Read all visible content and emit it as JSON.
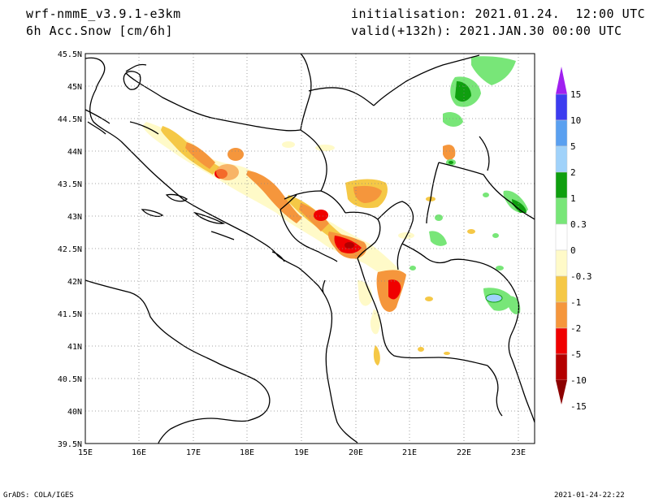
{
  "header": {
    "model": "wrf-nmmE_v3.9.1-e3km",
    "variable": "6h Acc.Snow [cm/6h]",
    "initialisation": "initialisation: 2021.01.24.  12:00 UTC",
    "valid": "valid(+132h): 2021.JAN.30 00:00 UTC"
  },
  "map": {
    "lat_labels": [
      "45.5N",
      "45N",
      "44.5N",
      "44N",
      "43.5N",
      "43N",
      "42.5N",
      "42N",
      "41.5N",
      "41N",
      "40.5N",
      "40N",
      "39.5N"
    ],
    "lon_labels": [
      "15E",
      "16E",
      "17E",
      "18E",
      "19E",
      "20E",
      "21E",
      "22E",
      "23E"
    ],
    "lat_range": [
      39.5,
      45.5
    ],
    "lon_range": [
      15,
      23.3
    ]
  },
  "legend": {
    "labels": [
      "15",
      "10",
      "5",
      "2",
      "1",
      "0.3",
      "0",
      "-0.3",
      "-1",
      "-2",
      "-5",
      "-10",
      "-15"
    ],
    "colors": [
      "#a020f0",
      "#3c3cf0",
      "#5aa0f0",
      "#a0d2fa",
      "#0f9f0f",
      "#78e678",
      "#ffffff",
      "#fffac8",
      "#f5c846",
      "#f5963c",
      "#f00000",
      "#b40000",
      "#8c0000"
    ]
  },
  "footer": {
    "left": "GrADS: COLA/IGES",
    "right": "2021-01-24-22:22"
  }
}
